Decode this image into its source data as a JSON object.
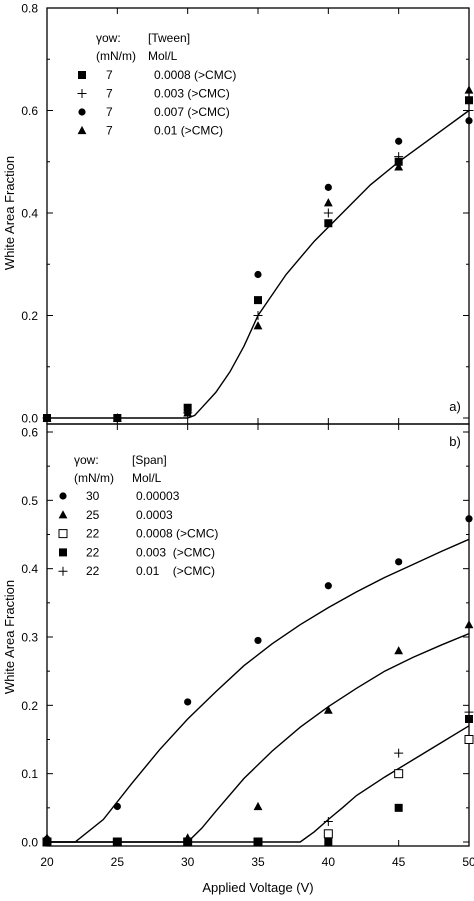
{
  "chart_data": [
    {
      "type": "scatter",
      "panel_label": "a)",
      "ylabel": "White Area Fraction",
      "xlim": [
        20,
        50
      ],
      "ylim": [
        0,
        0.8
      ],
      "x_ticks": [
        "20",
        "25",
        "30",
        "35",
        "40",
        "45",
        "50"
      ],
      "y_ticks": [
        "0.0",
        "0.2",
        "0.4",
        "0.6",
        "0.8"
      ],
      "y_tick_values": [
        0,
        0.2,
        0.4,
        0.6,
        0.8
      ],
      "legend": {
        "col1_header": [
          "γow:",
          "(mN/m)"
        ],
        "col2_header": [
          "[Tween]",
          "Mol/L"
        ]
      },
      "series": [
        {
          "marker": "square",
          "gamma": "7",
          "conc": "0.0008 (>CMC)",
          "x": [
            20,
            25,
            30,
            35,
            40,
            45,
            50
          ],
          "y": [
            0,
            0,
            0.02,
            0.23,
            0.38,
            0.5,
            0.62
          ]
        },
        {
          "marker": "plus",
          "gamma": "7",
          "conc": "0.003 (>CMC)",
          "x": [
            20,
            25,
            30,
            35,
            40,
            45,
            50
          ],
          "y": [
            0,
            0,
            0.01,
            0.2,
            0.4,
            0.51,
            0.6
          ]
        },
        {
          "marker": "circle",
          "gamma": "7",
          "conc": "0.007 (>CMC)",
          "x": [
            20,
            25,
            30,
            35,
            40,
            45,
            50
          ],
          "y": [
            0,
            0,
            0.01,
            0.28,
            0.45,
            0.54,
            0.58
          ]
        },
        {
          "marker": "triangle",
          "gamma": "7",
          "conc": "0.01 (>CMC)",
          "x": [
            20,
            25,
            30,
            35,
            40,
            45,
            50
          ],
          "y": [
            0,
            0,
            0.01,
            0.18,
            0.42,
            0.49,
            0.64
          ]
        }
      ],
      "fit_curves": [
        {
          "x": [
            20,
            30,
            30.5,
            31,
            32,
            33,
            34,
            35,
            37,
            39,
            41,
            43,
            45,
            47,
            50
          ],
          "y": [
            0,
            0,
            0.005,
            0.02,
            0.05,
            0.09,
            0.14,
            0.2,
            0.28,
            0.345,
            0.4,
            0.455,
            0.5,
            0.54,
            0.6
          ]
        }
      ]
    },
    {
      "type": "scatter",
      "panel_label": "b)",
      "xlabel": "Applied Voltage (V)",
      "ylabel": "White Area Fraction",
      "xlim": [
        20,
        50
      ],
      "ylim": [
        0,
        0.6
      ],
      "x_ticks": [
        "20",
        "25",
        "30",
        "35",
        "40",
        "45",
        "50"
      ],
      "y_ticks": [
        "0.0",
        "0.1",
        "0.2",
        "0.3",
        "0.4",
        "0.5",
        "0.6"
      ],
      "y_tick_values": [
        0,
        0.1,
        0.2,
        0.3,
        0.4,
        0.5,
        0.6
      ],
      "legend": {
        "col1_header": [
          "γow:",
          "(mN/m)"
        ],
        "col2_header": [
          "[Span]",
          "Mol/L"
        ]
      },
      "series": [
        {
          "marker": "circle",
          "gamma": "30",
          "conc": "0.00003",
          "x": [
            20,
            25,
            30,
            35,
            40,
            45,
            50
          ],
          "y": [
            0.004,
            0.052,
            0.205,
            0.295,
            0.375,
            0.41,
            0.473
          ]
        },
        {
          "marker": "triangle",
          "gamma": "25",
          "conc": "0.0003",
          "x": [
            20,
            25,
            30,
            35,
            40,
            45,
            50
          ],
          "y": [
            0.006,
            0,
            0.006,
            0.052,
            0.193,
            0.28,
            0.318
          ]
        },
        {
          "marker": "open-square",
          "gamma": "22",
          "conc": "0.0008 (>CMC)",
          "x": [
            20,
            25,
            30,
            35,
            40,
            45,
            50
          ],
          "y": [
            0,
            0,
            0,
            0,
            0.012,
            0.1,
            0.15
          ]
        },
        {
          "marker": "square",
          "gamma": "22",
          "conc": "0.003  (>CMC)",
          "x": [
            20,
            25,
            30,
            35,
            40,
            45,
            50
          ],
          "y": [
            0,
            0,
            0,
            0,
            0,
            0.05,
            0.18
          ]
        },
        {
          "marker": "plus",
          "gamma": "22",
          "conc": "0.01    (>CMC)",
          "x": [
            20,
            25,
            30,
            35,
            40,
            45,
            50
          ],
          "y": [
            0,
            0,
            0,
            0,
            0.03,
            0.13,
            0.19
          ]
        }
      ],
      "fit_curves": [
        {
          "x": [
            20,
            22,
            24,
            26,
            28,
            30,
            32,
            34,
            36,
            38,
            40,
            42,
            44,
            46,
            48,
            50
          ],
          "y": [
            0,
            0,
            0.033,
            0.085,
            0.135,
            0.18,
            0.22,
            0.258,
            0.29,
            0.318,
            0.343,
            0.366,
            0.387,
            0.406,
            0.425,
            0.443
          ]
        },
        {
          "x": [
            20,
            30,
            31,
            32,
            34,
            36,
            38,
            40,
            42,
            44,
            46,
            48,
            50
          ],
          "y": [
            0,
            0,
            0.02,
            0.045,
            0.093,
            0.133,
            0.168,
            0.198,
            0.225,
            0.25,
            0.27,
            0.288,
            0.305
          ]
        },
        {
          "x": [
            20,
            38,
            39,
            40,
            41,
            42,
            44,
            46,
            48,
            50
          ],
          "y": [
            0,
            0,
            0.015,
            0.033,
            0.05,
            0.068,
            0.095,
            0.12,
            0.145,
            0.17
          ]
        }
      ]
    }
  ]
}
